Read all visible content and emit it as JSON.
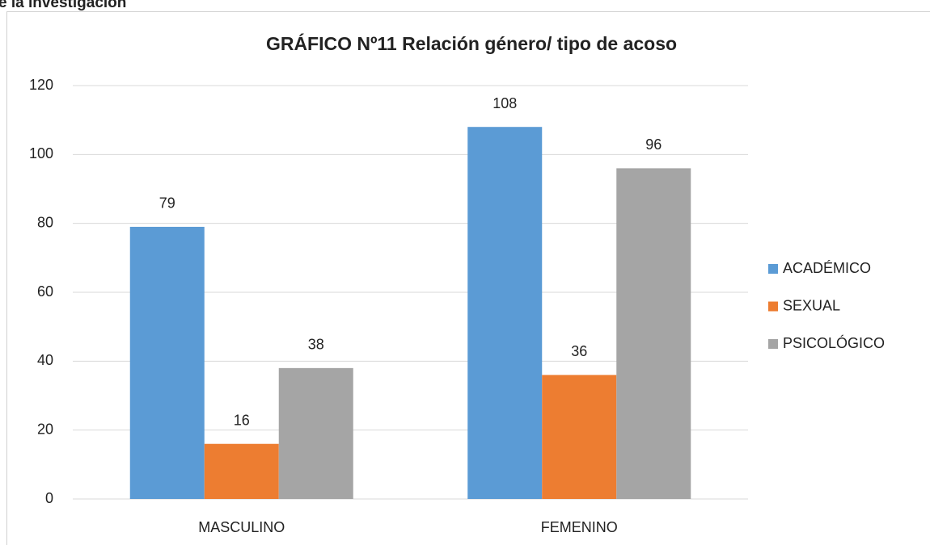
{
  "heading": "e la investigación",
  "chart_data": {
    "type": "bar",
    "title": "GRÁFICO Nº11 Relación género/ tipo de acoso",
    "categories": [
      "MASCULINO",
      "FEMENINO"
    ],
    "series": [
      {
        "name": "ACADÉMICO",
        "color": "#5b9bd5",
        "values": [
          79,
          108
        ]
      },
      {
        "name": "SEXUAL",
        "color": "#ed7d31",
        "values": [
          16,
          36
        ]
      },
      {
        "name": "PSICOLÓGICO",
        "color": "#a5a5a5",
        "values": [
          38,
          96
        ]
      }
    ],
    "ylim": [
      0,
      120
    ],
    "yticks": [
      0,
      20,
      40,
      60,
      80,
      100,
      120
    ],
    "grid": true,
    "legend": "right"
  }
}
